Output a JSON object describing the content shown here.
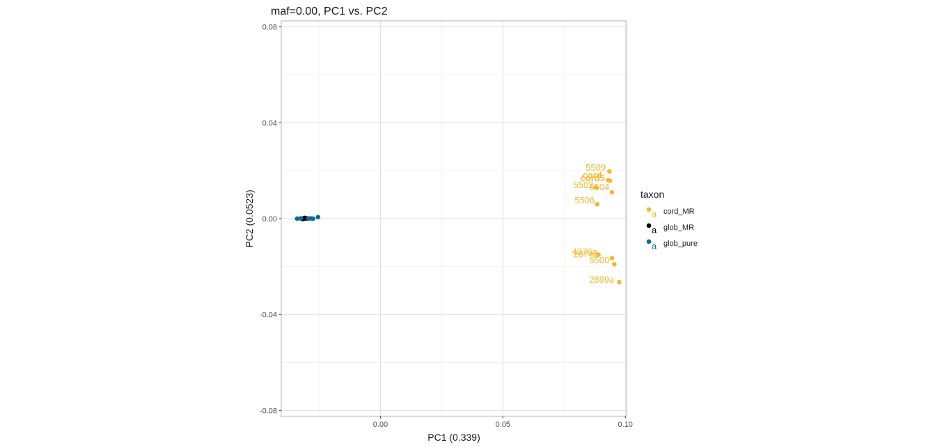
{
  "chart_data": {
    "type": "scatter",
    "title": "maf=0.00, PC1 vs. PC2",
    "xlabel": "PC1 (0.339)",
    "ylabel": "PC2 (0.0523)",
    "xlim": [
      -0.0405,
      0.1005
    ],
    "ylim": [
      -0.0825,
      0.0825
    ],
    "xticks": [
      0.0,
      0.05,
      0.1
    ],
    "xtick_labels": [
      "0.00",
      "0.05",
      "0.10"
    ],
    "yticks": [
      -0.08,
      -0.04,
      0.0,
      0.04,
      0.08
    ],
    "ytick_labels": [
      "-0.08",
      "-0.04",
      "0.00",
      "0.04",
      "0.08"
    ],
    "grid": true,
    "legend": {
      "title": "taxon",
      "placement": "right",
      "key_glyph": "a",
      "entries": [
        "cord_MR",
        "glob_MR",
        "glob_pure"
      ]
    },
    "series": [
      {
        "name": "cord_MR",
        "color": "#F5B82E",
        "points": [
          {
            "x": 0.0935,
            "y": 0.0197,
            "label": "5509",
            "label_dx": -0.0015,
            "label_dy": 0.0015
          },
          {
            "x": 0.0937,
            "y": 0.0158,
            "label": "cord5",
            "label_dx": -0.002,
            "label_dy": 0.001,
            "bold": true
          },
          {
            "x": 0.093,
            "y": 0.016,
            "label": "cord",
            "label_dx": -0.0025,
            "label_dy": 0.002,
            "bold": true
          },
          {
            "x": 0.0945,
            "y": 0.011,
            "label": "5504",
            "label_dx": -0.001,
            "label_dy": 0.002
          },
          {
            "x": 0.088,
            "y": 0.013,
            "label": "5502",
            "label_dx": -0.001,
            "label_dy": 0.001
          },
          {
            "x": 0.0885,
            "y": 0.006,
            "label": "5506",
            "label_dx": -0.001,
            "label_dy": 0.0015
          },
          {
            "x": 0.0945,
            "y": -0.0165,
            "label": "4376a",
            "label_dx": -0.006,
            "label_dy": 0.0025
          },
          {
            "x": 0.089,
            "y": -0.015,
            "label": "2874a",
            "label_dx": 0.0,
            "label_dy": 0.0
          },
          {
            "x": 0.0955,
            "y": -0.019,
            "label": "5500",
            "label_dx": -0.002,
            "label_dy": 0.0015
          },
          {
            "x": 0.0975,
            "y": -0.0265,
            "label": "2899a",
            "label_dx": -0.002,
            "label_dy": 0.001
          }
        ]
      },
      {
        "name": "glob_MR",
        "color": "#000000",
        "points": [
          {
            "x": -0.0315,
            "y": 0.0
          },
          {
            "x": -0.031,
            "y": 0.0003
          },
          {
            "x": -0.0305,
            "y": 0.0
          },
          {
            "x": -0.03,
            "y": 0.0001
          },
          {
            "x": -0.0318,
            "y": -0.0002
          }
        ]
      },
      {
        "name": "glob_pure",
        "color": "#0E6B8C",
        "points": [
          {
            "x": -0.034,
            "y": 0.0
          },
          {
            "x": -0.0325,
            "y": 0.0001
          },
          {
            "x": -0.0295,
            "y": 0.0
          },
          {
            "x": -0.0285,
            "y": 0.0001
          },
          {
            "x": -0.0275,
            "y": 0.0
          },
          {
            "x": -0.0255,
            "y": 0.0006
          }
        ]
      }
    ]
  }
}
